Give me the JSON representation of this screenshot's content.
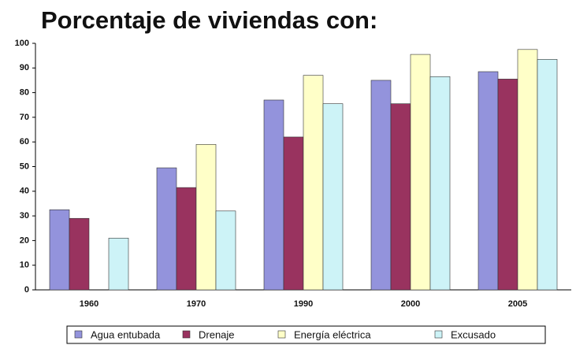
{
  "chart_data": {
    "type": "bar",
    "title": "Porcentaje de viviendas con:",
    "categories": [
      "1960",
      "1970",
      "1990",
      "2000",
      "2005"
    ],
    "series": [
      {
        "name": "Agua entubada",
        "color": "#9393dc",
        "values": [
          32.5,
          49.5,
          77,
          85,
          88.5
        ]
      },
      {
        "name": "Drenaje",
        "color": "#99335f",
        "values": [
          29,
          41.5,
          62,
          75.5,
          85.5
        ]
      },
      {
        "name": "Energía eléctrica",
        "color": "#ffffc8",
        "values": [
          null,
          59,
          87,
          95.5,
          97.5
        ]
      },
      {
        "name": "Excusado",
        "color": "#cdf3f7",
        "values": [
          21,
          32,
          75.5,
          86.5,
          93.5
        ]
      }
    ],
    "ylim": [
      0,
      100
    ],
    "yticks": [
      0,
      10,
      20,
      30,
      40,
      50,
      60,
      70,
      80,
      90,
      100
    ],
    "grid": false,
    "legend": "bottom"
  }
}
